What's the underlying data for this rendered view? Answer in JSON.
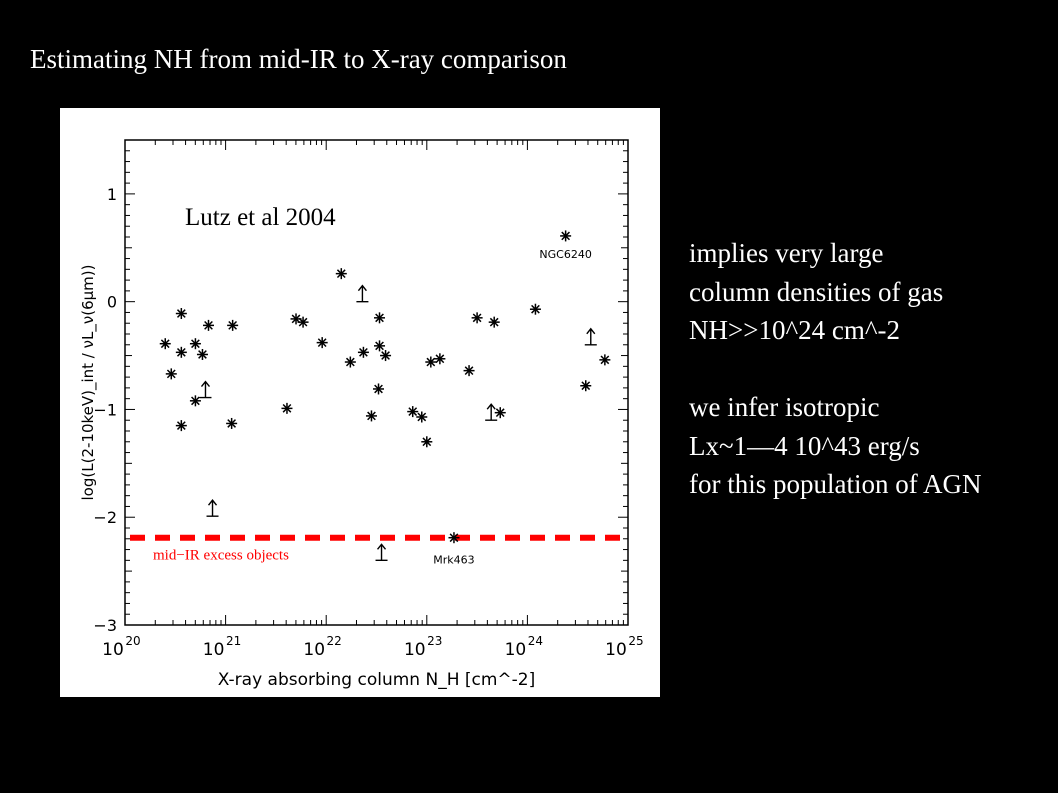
{
  "slide": {
    "title": "Estimating NH from mid-IR to X-ray comparison",
    "notes": [
      "implies very large",
      "column densities of gas",
      "NH>>10^24 cm^-2",
      "",
      "we infer isotropic",
      "Lx~1—4 10^43 erg/s",
      "for this population of AGN"
    ]
  },
  "chart_data": {
    "type": "scatter",
    "xlabel": "X-ray absorbing column N_H [cm^-2]",
    "ylabel": "log(L(2-10keV)_int / νL_ν(6μm))",
    "xscale": "log",
    "xlim": [
      1e+20,
      1e+25
    ],
    "ylim": [
      -3,
      1.5
    ],
    "xticks": [
      "10^20",
      "10^21",
      "10^22",
      "10^23",
      "10^24",
      "10^25"
    ],
    "yticks": [
      "-3",
      "-2",
      "-1",
      "0",
      "1"
    ],
    "grid": false,
    "annotation": "Lutz et al 2004",
    "threshold": {
      "y": -2.19,
      "label": "mid−IR excess objects",
      "color": "#ff0000"
    },
    "marker_color": "#000000",
    "points_log_nh": [
      [
        20.4,
        -0.39
      ],
      [
        20.46,
        -0.67
      ],
      [
        20.56,
        -0.11
      ],
      [
        20.56,
        -0.47
      ],
      [
        20.56,
        -1.15
      ],
      [
        20.7,
        -0.39
      ],
      [
        20.77,
        -0.49
      ],
      [
        20.83,
        -0.22
      ],
      [
        20.7,
        -0.92
      ],
      [
        21.07,
        -0.22
      ],
      [
        21.06,
        -1.13
      ],
      [
        21.61,
        -0.99
      ],
      [
        21.7,
        -0.16
      ],
      [
        21.77,
        -0.19
      ],
      [
        21.96,
        -0.38
      ],
      [
        22.15,
        0.26
      ],
      [
        22.24,
        -0.56
      ],
      [
        22.37,
        -0.47
      ],
      [
        22.53,
        -0.15
      ],
      [
        22.53,
        -0.41
      ],
      [
        22.59,
        -0.5
      ],
      [
        22.52,
        -0.81
      ],
      [
        22.45,
        -1.06
      ],
      [
        22.86,
        -1.02
      ],
      [
        22.95,
        -1.07
      ],
      [
        23.0,
        -1.3
      ],
      [
        23.04,
        -0.56
      ],
      [
        23.13,
        -0.53
      ],
      [
        23.42,
        -0.64
      ],
      [
        23.5,
        -0.15
      ],
      [
        23.67,
        -0.19
      ],
      [
        23.73,
        -1.03
      ],
      [
        24.08,
        -0.07
      ],
      [
        24.38,
        0.61
      ],
      [
        24.58,
        -0.78
      ],
      [
        24.77,
        -0.54
      ],
      [
        23.27,
        -2.19
      ]
    ],
    "lower_limits_log_nh": [
      [
        22.36,
        0.0
      ],
      [
        20.8,
        -0.89
      ],
      [
        20.87,
        -1.99
      ],
      [
        22.55,
        -2.4
      ],
      [
        24.63,
        -0.4
      ],
      [
        23.64,
        -1.1
      ]
    ],
    "labels": [
      {
        "text": "NGC6240",
        "x": 24.38,
        "y": 0.61
      },
      {
        "text": "Mrk463",
        "x": 23.27,
        "y": -2.19
      }
    ]
  }
}
